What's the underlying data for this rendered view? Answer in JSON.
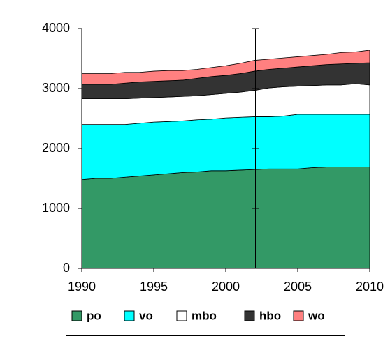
{
  "chart_data": {
    "type": "stacked_area",
    "x": [
      1990,
      1991,
      1992,
      1993,
      1994,
      1995,
      1996,
      1997,
      1998,
      1999,
      2000,
      2001,
      2002,
      2003,
      2004,
      2005,
      2006,
      2007,
      2008,
      2009,
      2010
    ],
    "series": [
      {
        "name": "po",
        "color": "#339966",
        "values": [
          1480,
          1500,
          1500,
          1520,
          1540,
          1560,
          1580,
          1600,
          1610,
          1630,
          1630,
          1640,
          1650,
          1660,
          1660,
          1660,
          1680,
          1690,
          1690,
          1690,
          1690
        ]
      },
      {
        "name": "vo",
        "color": "#00ffff",
        "values": [
          920,
          900,
          900,
          880,
          880,
          880,
          870,
          860,
          870,
          860,
          880,
          880,
          880,
          870,
          880,
          910,
          890,
          880,
          880,
          880,
          880
        ]
      },
      {
        "name": "mbo",
        "color": "#ffffff",
        "values": [
          430,
          430,
          430,
          430,
          420,
          410,
          410,
          410,
          400,
          410,
          410,
          420,
          440,
          480,
          490,
          470,
          480,
          490,
          490,
          510,
          490
        ]
      },
      {
        "name": "hbo",
        "color": "#333333",
        "values": [
          240,
          240,
          240,
          260,
          270,
          270,
          270,
          270,
          290,
          300,
          300,
          310,
          320,
          310,
          310,
          320,
          330,
          340,
          350,
          340,
          370
        ]
      },
      {
        "name": "wo",
        "color": "#ff8080",
        "values": [
          180,
          180,
          180,
          180,
          160,
          170,
          170,
          160,
          150,
          150,
          160,
          170,
          180,
          170,
          170,
          170,
          170,
          170,
          190,
          190,
          210
        ]
      }
    ],
    "xlim": [
      1990,
      2010
    ],
    "xticks": [
      1990,
      1995,
      2000,
      2005,
      2010
    ],
    "ylim": [
      0,
      4000
    ],
    "yticks": [
      0,
      1000,
      2000,
      3000,
      4000
    ],
    "grid": false,
    "legend": "bottom"
  }
}
